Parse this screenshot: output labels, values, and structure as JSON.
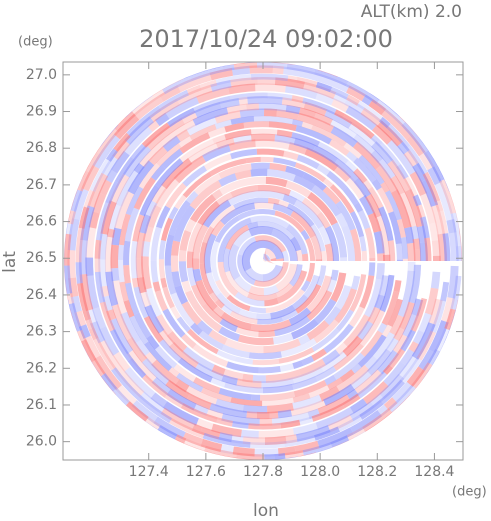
{
  "chart_data": {
    "type": "ppi",
    "top_label": "ALT(km) 2.0",
    "title": "2017/10/24 09:02:00",
    "ylabel_unit": "(deg)",
    "xlabel_unit": "(deg)",
    "xlabel": "lon",
    "ylabel": "lat",
    "xlim": [
      127.1,
      128.5
    ],
    "xticks": [
      127.4,
      127.6,
      127.8,
      {
        "value": 128.0,
        "label": "128.0"
      },
      128.2,
      128.4
    ],
    "ylim": [
      25.95,
      27.035
    ],
    "yticks": [
      {
        "value": 26.0,
        "label": "26.0"
      },
      26.1,
      26.2,
      26.3,
      26.4,
      26.5,
      26.6,
      26.7,
      26.8,
      26.9,
      {
        "value": 27.0,
        "label": "27.0"
      }
    ],
    "grid": false
  }
}
